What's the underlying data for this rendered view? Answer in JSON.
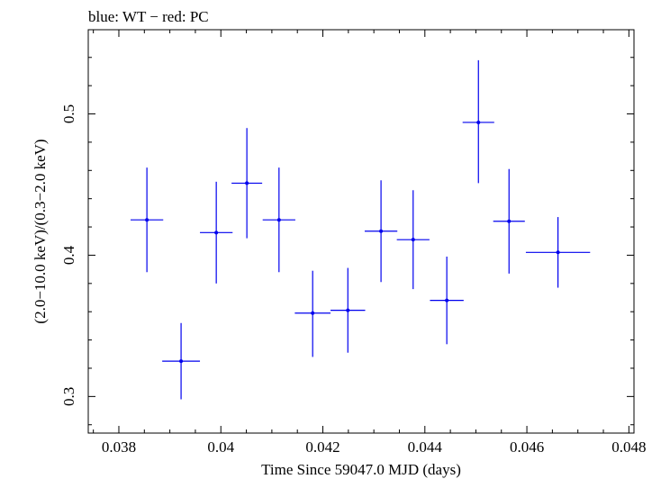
{
  "chart_data": {
    "type": "scatter",
    "title": "blue: WT − red: PC",
    "xlabel": "Time Since 59047.0 MJD (days)",
    "ylabel": "(2.0−10.0 keV)/(0.3−2.0 keV)",
    "xlim": [
      0.0374,
      0.0481
    ],
    "ylim": [
      0.2741,
      0.5596
    ],
    "x_ticks": [
      0.038,
      0.04,
      0.042,
      0.044,
      0.046,
      0.048
    ],
    "x_tick_labels": [
      "0.038",
      "0.04",
      "0.042",
      "0.044",
      "0.046",
      "0.048"
    ],
    "y_ticks": [
      0.3,
      0.4,
      0.5
    ],
    "y_tick_labels": [
      "0.3",
      "0.4",
      "0.5"
    ],
    "grid": false,
    "series": [
      {
        "color": "#0000ee",
        "points": [
          {
            "x": 0.03855,
            "y": 0.425,
            "xerr": 0.00032,
            "yerr_lo": 0.037,
            "yerr_hi": 0.037
          },
          {
            "x": 0.03922,
            "y": 0.325,
            "xerr": 0.00037,
            "yerr_lo": 0.027,
            "yerr_hi": 0.027
          },
          {
            "x": 0.03991,
            "y": 0.416,
            "xerr": 0.00032,
            "yerr_lo": 0.036,
            "yerr_hi": 0.036
          },
          {
            "x": 0.04051,
            "y": 0.451,
            "xerr": 0.0003,
            "yerr_lo": 0.039,
            "yerr_hi": 0.039
          },
          {
            "x": 0.04114,
            "y": 0.425,
            "xerr": 0.00032,
            "yerr_lo": 0.037,
            "yerr_hi": 0.037
          },
          {
            "x": 0.0418,
            "y": 0.359,
            "xerr": 0.00035,
            "yerr_lo": 0.031,
            "yerr_hi": 0.03
          },
          {
            "x": 0.04249,
            "y": 0.361,
            "xerr": 0.00034,
            "yerr_lo": 0.03,
            "yerr_hi": 0.03
          },
          {
            "x": 0.04314,
            "y": 0.417,
            "xerr": 0.00032,
            "yerr_lo": 0.036,
            "yerr_hi": 0.036
          },
          {
            "x": 0.04377,
            "y": 0.411,
            "xerr": 0.00032,
            "yerr_lo": 0.035,
            "yerr_hi": 0.035
          },
          {
            "x": 0.04443,
            "y": 0.368,
            "xerr": 0.00033,
            "yerr_lo": 0.031,
            "yerr_hi": 0.031
          },
          {
            "x": 0.04505,
            "y": 0.494,
            "xerr": 0.00031,
            "yerr_lo": 0.043,
            "yerr_hi": 0.044
          },
          {
            "x": 0.04565,
            "y": 0.424,
            "xerr": 0.00031,
            "yerr_lo": 0.037,
            "yerr_hi": 0.037
          },
          {
            "x": 0.04661,
            "y": 0.402,
            "xerr": 0.00063,
            "yerr_lo": 0.025,
            "yerr_hi": 0.025
          }
        ]
      }
    ]
  }
}
